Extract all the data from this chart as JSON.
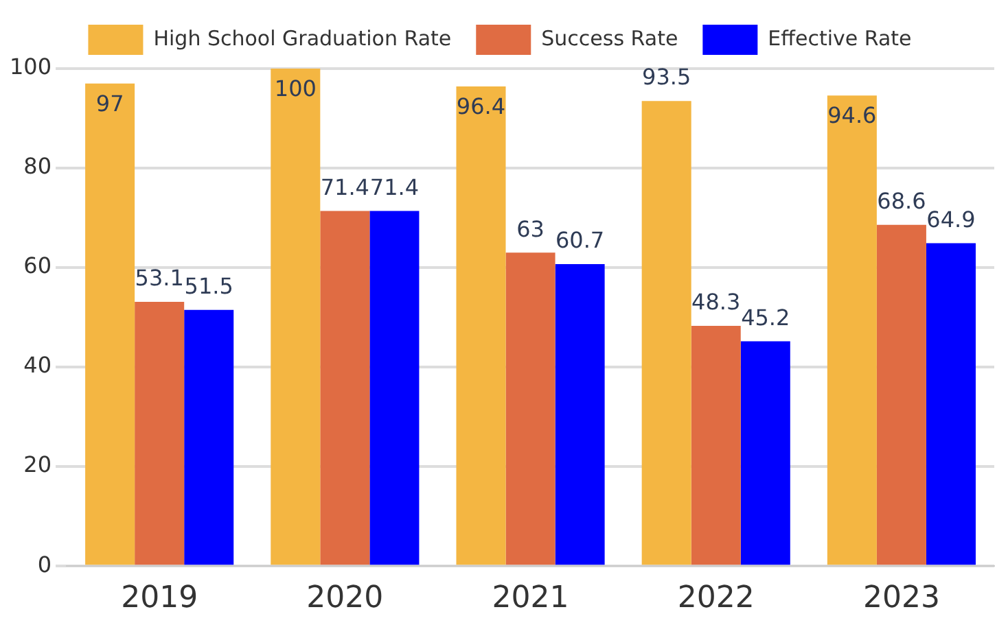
{
  "chart_data": {
    "type": "bar",
    "categories": [
      "2019",
      "2020",
      "2021",
      "2022",
      "2023"
    ],
    "series": [
      {
        "name": "High School Graduation Rate",
        "color": "#f4b642",
        "values": [
          97,
          100,
          96.4,
          93.5,
          94.6
        ]
      },
      {
        "name": "Success Rate",
        "color": "#e06c43",
        "values": [
          53.1,
          71.4,
          63,
          48.3,
          68.6
        ]
      },
      {
        "name": "Effective Rate",
        "color": "#0000ff",
        "values": [
          51.5,
          71.4,
          60.7,
          45.2,
          64.9
        ]
      }
    ],
    "ylim": [
      0,
      100
    ],
    "yticks": [
      0,
      20,
      40,
      60,
      80,
      100
    ],
    "grid": "y",
    "legend": "top",
    "data_labels": true
  }
}
